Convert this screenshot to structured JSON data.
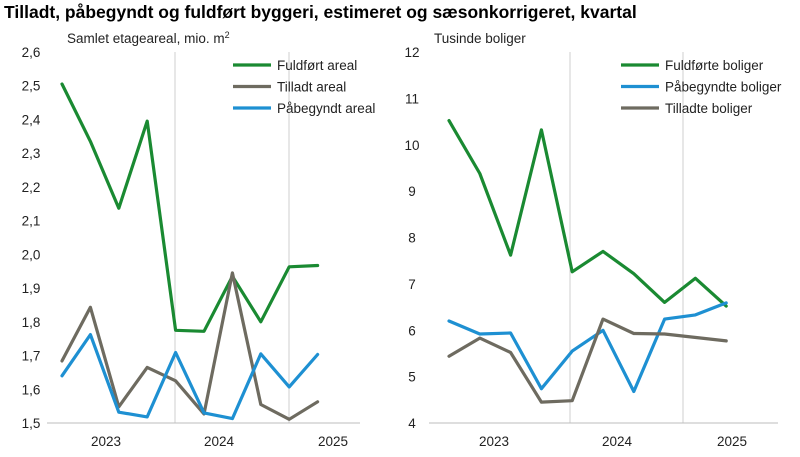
{
  "title": "Tilladt, påbegyndt og fuldført byggeri, estimeret og sæsonkorrigeret, kvartal",
  "chart_data": [
    {
      "type": "line",
      "ylabel": "Samlet etageareal, mio. m",
      "ylabel_sup": "2",
      "ylim": [
        1.5,
        2.6
      ],
      "yticks": [
        1.5,
        1.6,
        1.7,
        1.8,
        1.9,
        2.0,
        2.1,
        2.2,
        2.3,
        2.4,
        2.5,
        2.6
      ],
      "ytick_labels": [
        "1,5",
        "1,6",
        "1,7",
        "1,8",
        "1,9",
        "2,0",
        "2,1",
        "2,2",
        "2,3",
        "2,4",
        "2,5",
        "2,6"
      ],
      "x_labels": [
        "2023",
        "2024",
        "2025"
      ],
      "grid": "vertical at year boundaries",
      "legend_position": "top-right",
      "series": [
        {
          "name": "Fuldført areal",
          "color": "#1a8a32",
          "values": [
            2.505,
            2.335,
            2.137,
            2.395,
            1.775,
            1.772,
            1.935,
            1.8,
            1.963,
            1.967
          ]
        },
        {
          "name": "Tilladt areal",
          "color": "#6e6b60",
          "values": [
            1.684,
            1.843,
            1.548,
            1.665,
            1.625,
            1.527,
            1.945,
            1.555,
            1.511,
            1.563
          ]
        },
        {
          "name": "Påbegyndt areal",
          "color": "#1e90d2",
          "values": [
            1.64,
            1.762,
            1.532,
            1.518,
            1.709,
            1.53,
            1.513,
            1.705,
            1.607,
            1.703
          ]
        }
      ]
    },
    {
      "type": "line",
      "ylabel": "Tusinde boliger",
      "ylim": [
        4,
        12
      ],
      "yticks": [
        4,
        5,
        6,
        7,
        8,
        9,
        10,
        11,
        12
      ],
      "ytick_labels": [
        "4",
        "5",
        "6",
        "7",
        "8",
        "9",
        "10",
        "11",
        "12"
      ],
      "x_labels": [
        "2023",
        "2024",
        "2025"
      ],
      "grid": "vertical at year boundaries",
      "legend_position": "top-right",
      "series": [
        {
          "name": "Fuldførte boliger",
          "color": "#1a8a32",
          "values": [
            10.52,
            9.38,
            7.62,
            10.32,
            7.26,
            7.7,
            7.22,
            6.6,
            7.12,
            6.52
          ]
        },
        {
          "name": "Påbegyndte boliger",
          "color": "#1e90d2",
          "values": [
            6.2,
            5.92,
            5.94,
            4.74,
            5.55,
            6.0,
            4.68,
            6.24,
            6.33,
            6.59
          ]
        },
        {
          "name": "Tilladte boliger",
          "color": "#6e6b60",
          "values": [
            5.44,
            5.83,
            5.52,
            4.45,
            4.48,
            6.24,
            5.93,
            5.92,
            null,
            5.77
          ]
        }
      ]
    }
  ]
}
